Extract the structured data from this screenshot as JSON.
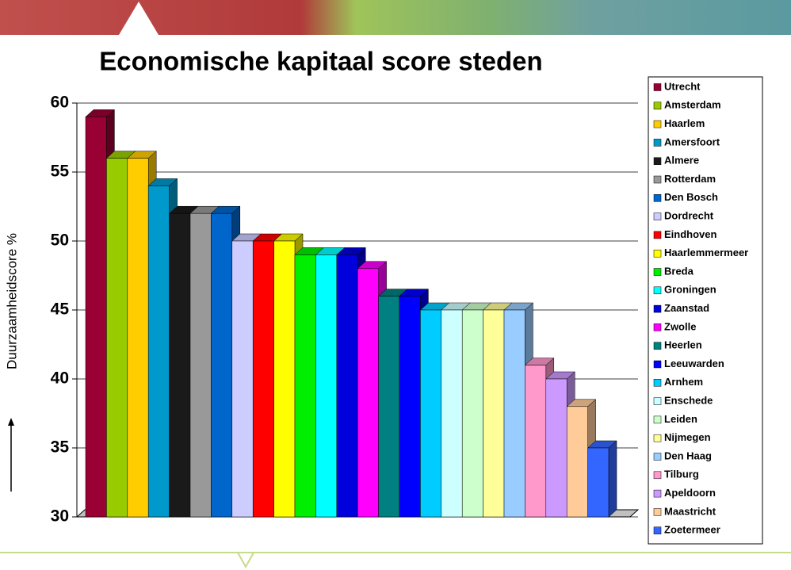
{
  "chart_data": {
    "type": "bar3d",
    "title": "Economische kapitaal score steden",
    "y_label": "Duurzaamheidscore %",
    "categories": [
      "Utrecht",
      "Amsterdam",
      "Haarlem",
      "Amersfoort",
      "Almere",
      "Rotterdam",
      "Den Bosch",
      "Dordrecht",
      "Eindhoven",
      "Haarlemmermeer",
      "Breda",
      "Groningen",
      "Zaanstad",
      "Zwolle",
      "Heerlen",
      "Leeuwarden",
      "Arnhem",
      "Enschede",
      "Leiden",
      "Nijmegen",
      "Den Haag",
      "Tilburg",
      "Apeldoorn",
      "Maastricht",
      "Zoetermeer"
    ],
    "values": [
      59,
      56,
      56,
      54,
      52,
      52,
      52,
      50,
      50,
      50,
      49,
      49,
      49,
      48,
      46,
      46,
      45,
      45,
      45,
      45,
      45,
      41,
      40,
      38,
      35
    ],
    "colors": [
      "#990033",
      "#99cc00",
      "#ffcc00",
      "#0099cc",
      "#1a1a1a",
      "#999999",
      "#0066cc",
      "#ccccff",
      "#ff0000",
      "#ffff00",
      "#00ee00",
      "#00ffff",
      "#0000dd",
      "#ff00ff",
      "#008080",
      "#0000ff",
      "#00ccff",
      "#ccffff",
      "#ccffcc",
      "#ffff99",
      "#99ccff",
      "#ff99cc",
      "#cc99ff",
      "#ffcc99",
      "#3366ff"
    ],
    "ylim": [
      30,
      60
    ],
    "yticks": [
      30,
      35,
      40,
      45,
      50,
      55,
      60
    ],
    "grid": true,
    "legend": "right"
  }
}
